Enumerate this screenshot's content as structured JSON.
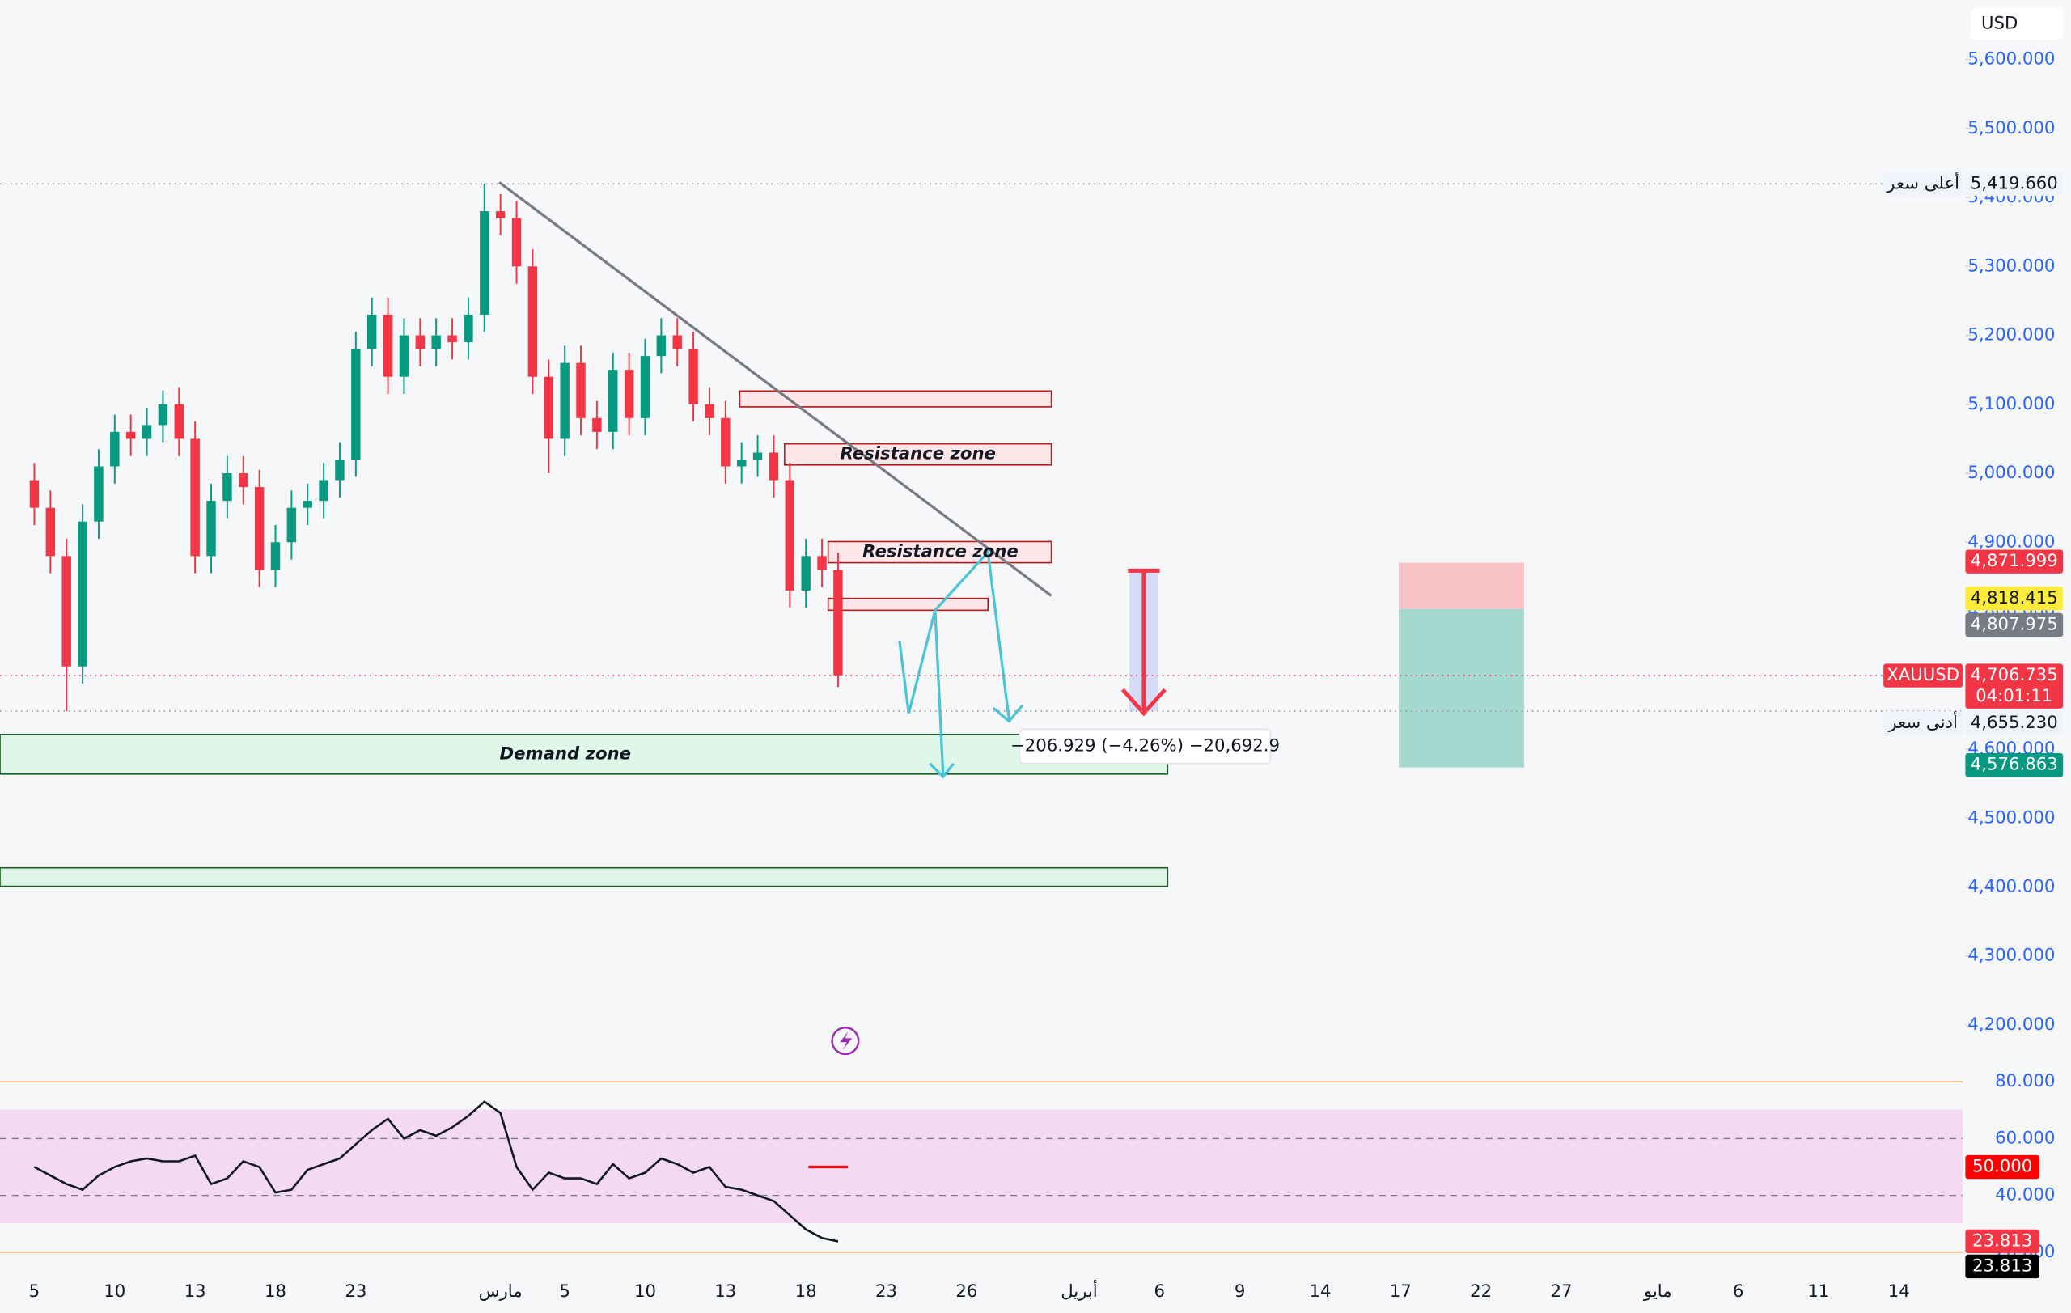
{
  "chart_data": {
    "type": "candlestick",
    "currency": "USD",
    "up_color": "#089981",
    "down_color": "#f23645",
    "categories": [
      "5",
      null,
      null,
      null,
      null,
      "10",
      null,
      null,
      null,
      null,
      "13",
      null,
      null,
      null,
      null,
      "18",
      null,
      null,
      null,
      null,
      "23",
      null,
      null,
      null,
      null,
      null,
      null,
      null,
      null,
      "مارس",
      null,
      null,
      null,
      "5",
      null,
      null,
      null,
      null,
      "10",
      null,
      null,
      null,
      null,
      "13",
      null,
      null,
      null,
      null,
      "18",
      null,
      null,
      null,
      null,
      "23",
      null,
      null,
      null,
      null,
      "26",
      null,
      null,
      null,
      null,
      null,
      null,
      "أبريل",
      null,
      null,
      null,
      null,
      "6",
      null,
      null,
      null,
      null,
      "9",
      null,
      null,
      null,
      null,
      "14",
      null,
      null,
      null,
      null,
      "17",
      null,
      null,
      null,
      null,
      "22",
      null,
      null,
      null,
      null,
      "27",
      null,
      null,
      null,
      null,
      null,
      "مايو",
      null,
      null,
      null,
      null,
      "6",
      null,
      null,
      null,
      null,
      "11",
      null,
      null,
      null,
      null,
      "14"
    ],
    "open": [
      4990,
      4950,
      4880,
      4720,
      4930,
      5010,
      5060,
      5050,
      5070,
      5100,
      5050,
      4880,
      4960,
      5000,
      4980,
      4860,
      4900,
      4950,
      4960,
      4990,
      5020,
      5180,
      5230,
      5140,
      5200,
      5180,
      5200,
      5190,
      5230,
      5380,
      5370,
      5300,
      5140,
      5050,
      5160,
      5080,
      5060,
      5150,
      5080,
      5170,
      5200,
      5180,
      5100,
      5080,
      5010,
      5020,
      5030,
      4990,
      4830,
      4880,
      4860,
      null,
      null,
      null,
      null,
      null,
      null,
      null,
      null,
      null,
      null,
      null,
      null,
      null,
      null,
      null,
      null,
      null,
      null,
      null,
      null,
      null,
      null,
      null,
      null,
      null,
      null,
      null,
      null,
      null,
      null,
      null,
      null,
      null,
      null,
      null,
      null,
      null,
      null,
      null,
      null,
      null,
      null,
      null,
      null,
      null,
      null,
      null,
      null,
      null,
      null,
      null,
      null,
      null,
      null,
      null,
      null,
      null,
      null,
      null,
      null,
      null,
      null,
      null,
      null,
      null,
      null
    ],
    "high": [
      5015,
      4975,
      4905,
      4955,
      5035,
      5085,
      5085,
      5095,
      5120,
      5125,
      5075,
      4985,
      5025,
      5025,
      5005,
      4925,
      4975,
      4985,
      5015,
      5045,
      5205,
      5255,
      5255,
      5225,
      5225,
      5225,
      5225,
      5255,
      5420,
      5405,
      5395,
      5325,
      5165,
      5185,
      5185,
      5105,
      5175,
      5175,
      5195,
      5225,
      5225,
      5205,
      5125,
      5105,
      5045,
      5055,
      5055,
      5015,
      4905,
      4905,
      4885,
      null,
      null,
      null,
      null,
      null,
      null,
      null,
      null,
      null,
      null,
      null,
      null,
      null,
      null,
      null,
      null,
      null,
      null,
      null,
      null,
      null,
      null,
      null,
      null,
      null,
      null,
      null,
      null,
      null,
      null,
      null,
      null,
      null,
      null,
      null,
      null,
      null,
      null,
      null,
      null,
      null,
      null,
      null,
      null,
      null,
      null,
      null,
      null,
      null,
      null,
      null,
      null,
      null,
      null,
      null,
      null,
      null,
      null,
      null,
      null,
      null,
      null,
      null,
      null,
      null,
      null
    ],
    "low": [
      4925,
      4855,
      4655,
      4695,
      4905,
      4985,
      5025,
      5025,
      5045,
      5025,
      4855,
      4855,
      4935,
      4955,
      4835,
      4835,
      4875,
      4925,
      4935,
      4965,
      4995,
      5155,
      5115,
      5115,
      5155,
      5155,
      5165,
      5165,
      5205,
      5345,
      5275,
      5115,
      5000,
      5025,
      5055,
      5035,
      5035,
      5055,
      5055,
      5145,
      5155,
      5075,
      5055,
      4985,
      4985,
      4995,
      4965,
      4805,
      4805,
      4835,
      4690,
      null,
      null,
      null,
      null,
      null,
      null,
      null,
      null,
      null,
      null,
      null,
      null,
      null,
      null,
      null,
      null,
      null,
      null,
      null,
      null,
      null,
      null,
      null,
      null,
      null,
      null,
      null,
      null,
      null,
      null,
      null,
      null,
      null,
      null,
      null,
      null,
      null,
      null,
      null,
      null,
      null,
      null,
      null,
      null,
      null,
      null,
      null,
      null,
      null,
      null,
      null,
      null,
      null,
      null,
      null,
      null,
      null,
      null,
      null,
      null,
      null,
      null,
      null,
      null,
      null,
      null
    ],
    "close": [
      4950,
      4880,
      4720,
      4930,
      5010,
      5060,
      5050,
      5070,
      5100,
      5050,
      4880,
      4960,
      5000,
      4980,
      4860,
      4900,
      4950,
      4960,
      4990,
      5020,
      5180,
      5230,
      5140,
      5200,
      5180,
      5200,
      5190,
      5230,
      5380,
      5370,
      5300,
      5140,
      5050,
      5160,
      5080,
      5060,
      5150,
      5080,
      5170,
      5200,
      5180,
      5100,
      5080,
      5010,
      5020,
      5030,
      4990,
      4830,
      4880,
      4860,
      4707,
      null,
      null,
      null,
      null,
      null,
      null,
      null,
      null,
      null,
      null,
      null,
      null,
      null,
      null,
      null,
      null,
      null,
      null,
      null,
      null,
      null,
      null,
      null,
      null,
      null,
      null,
      null,
      null,
      null,
      null,
      null,
      null,
      null,
      null,
      null,
      null,
      null,
      null,
      null,
      null,
      null,
      null,
      null,
      null,
      null,
      null,
      null,
      null,
      null,
      null,
      null,
      null,
      null,
      null,
      null,
      null,
      null,
      null,
      null,
      null,
      null,
      null,
      null,
      null,
      null,
      null
    ],
    "ylim": [
      4130,
      5680
    ],
    "yticks": [
      {
        "value": 5600,
        "label": "5,600.000"
      },
      {
        "value": 5500,
        "label": "5,500.000"
      },
      {
        "value": 5400,
        "label": "5,400.000"
      },
      {
        "value": 5300,
        "label": "5,300.000"
      },
      {
        "value": 5200,
        "label": "5,200.000"
      },
      {
        "value": 5100,
        "label": "5,100.000"
      },
      {
        "value": 5000,
        "label": "5,000.000"
      },
      {
        "value": 4900,
        "label": "4,900.000"
      },
      {
        "value": 4800,
        "label": "4,800.000"
      },
      {
        "value": 4700,
        "label": "4,700.000"
      },
      {
        "value": 4600,
        "label": "4,600.000"
      },
      {
        "value": 4500,
        "label": "4,500.000"
      },
      {
        "value": 4400,
        "label": "4,400.000"
      },
      {
        "value": 4300,
        "label": "4,300.000"
      },
      {
        "value": 4200,
        "label": "4,200.000"
      }
    ],
    "price_tags": [
      {
        "value": 5419.66,
        "label": "5,419.660",
        "caption": "أعلى سعر",
        "color": "#f0f3fa",
        "text_color": "#131722",
        "line": "#9598a1"
      },
      {
        "value": 4871.999,
        "label": "4,871.999",
        "color": "#f23645",
        "text_color": "#ffffff"
      },
      {
        "value": 4818.415,
        "label": "4,818.415",
        "color": "#ffeb3b",
        "text_color": "#131722"
      },
      {
        "value": 4807.975,
        "label": "4,807.975",
        "color": "#787b86",
        "text_color": "#ffffff"
      },
      {
        "value": 4706.735,
        "label": "4,706.735",
        "caption": "XAUUSD",
        "countdown": "04:01:11",
        "color": "#f23645",
        "text_color": "#ffffff",
        "line": "#f23645"
      },
      {
        "value": 4655.23,
        "label": "4,655.230",
        "caption": "أدنى سعر",
        "color": "#f0f3fa",
        "text_color": "#131722",
        "line": "#9598a1"
      },
      {
        "value": 4576.863,
        "label": "4,576.863",
        "color": "#089981",
        "text_color": "#ffffff"
      }
    ],
    "annotations": [
      "Resistance zone",
      "Resistance zone",
      "Demand zone",
      "−206.929 (−4.26%) −20,692.9"
    ],
    "rsi": {
      "color": "#131722",
      "values": [
        50,
        47,
        44,
        42,
        47,
        50,
        52,
        53,
        52,
        52,
        54,
        44,
        46,
        52,
        50,
        41,
        42,
        49,
        51,
        53,
        58,
        63,
        67,
        60,
        63,
        61,
        64,
        68,
        73,
        69,
        50,
        42,
        48,
        46,
        46,
        44,
        51,
        46,
        48,
        53,
        51,
        48,
        50,
        43,
        42,
        40,
        38,
        33,
        28,
        25,
        23.813,
        null,
        null,
        null,
        null,
        null,
        null,
        null,
        null,
        null,
        null,
        null,
        null,
        null,
        null,
        null,
        null,
        null,
        null,
        null,
        null,
        null,
        null,
        null,
        null,
        null,
        null,
        null,
        null,
        null,
        null,
        null,
        null,
        null,
        null,
        null,
        null,
        null,
        null,
        null,
        null,
        null,
        null,
        null,
        null,
        null,
        null,
        null,
        null,
        null,
        null,
        null,
        null,
        null,
        null,
        null,
        null,
        null,
        null,
        null,
        null,
        null,
        null,
        null,
        null,
        null,
        null
      ],
      "ylim": [
        16,
        84
      ],
      "yticks": [
        {
          "value": 80,
          "label": "80.000"
        },
        {
          "value": 60,
          "label": "60.000"
        },
        {
          "value": 40,
          "label": "40.000"
        },
        {
          "value": 20,
          "label": "20.000"
        }
      ],
      "tags": [
        {
          "value": 50,
          "label": "50.000",
          "color": "#ff0000",
          "text_color": "#ffffff"
        },
        {
          "value": 23.813,
          "label": "23.813",
          "color": "#f23645",
          "text_color": "#ffffff"
        },
        {
          "value": 23.813,
          "label": "23.813",
          "color": "#000000",
          "text_color": "#ffffff"
        }
      ]
    }
  }
}
